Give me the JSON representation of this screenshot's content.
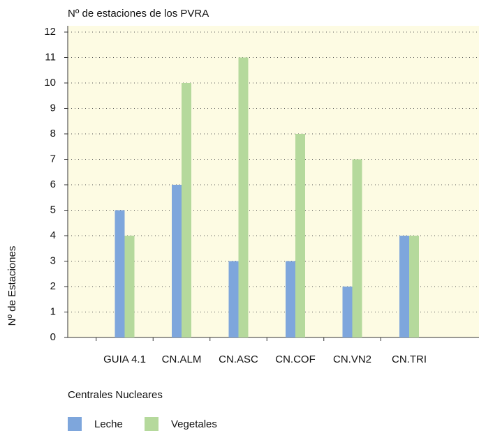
{
  "chart_data": {
    "type": "bar",
    "title": "Nº de estaciones de los PVRA",
    "y_label": "Nº de Estaciones",
    "x_label": "Centrales Nucleares",
    "categories": [
      "GUIA 4.1",
      "CN.ALM",
      "CN.ASC",
      "CN.COF",
      "CN.VN2",
      "CN.TRI"
    ],
    "series": [
      {
        "name": "Leche",
        "color": "#7ea6dc",
        "values": [
          5,
          6,
          3,
          3,
          2,
          4
        ]
      },
      {
        "name": "Vegetales",
        "color": "#b5d99c",
        "values": [
          4,
          10,
          11,
          8,
          7,
          4
        ]
      }
    ],
    "ylim": [
      0,
      12
    ],
    "yticks": [
      0,
      1,
      2,
      3,
      4,
      5,
      6,
      7,
      8,
      9,
      10,
      11,
      12
    ],
    "grid": true
  }
}
